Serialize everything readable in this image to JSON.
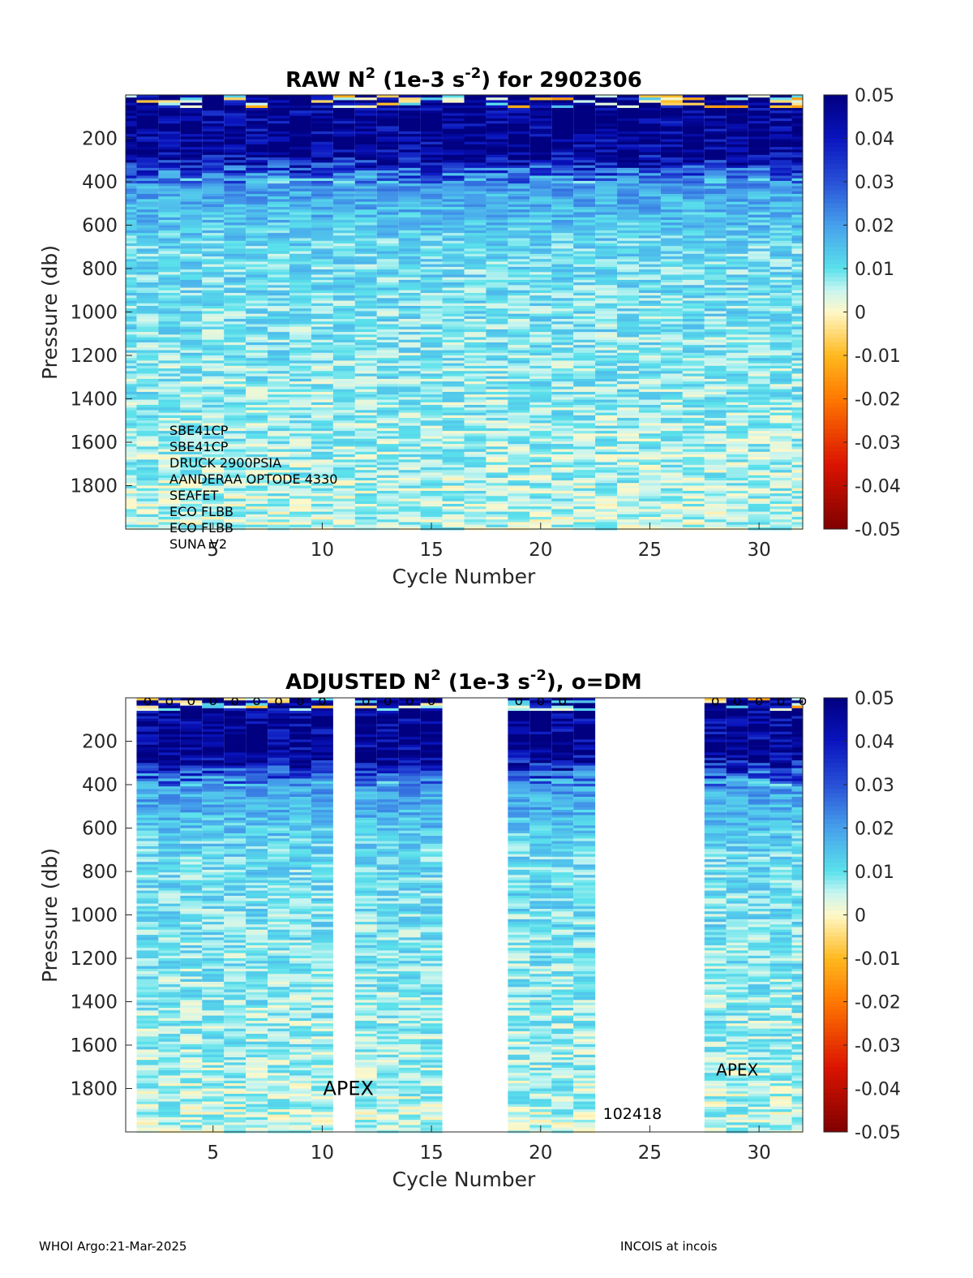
{
  "chart_data": [
    {
      "type": "heatmap",
      "title_main": "RAW N",
      "title_sup": "2",
      "title_unit_pre": " (1e-3 s",
      "title_unit_sup": "-2",
      "title_post": ") for 2902306",
      "xlabel": "Cycle Number",
      "ylabel": "Pressure (db)",
      "xlim": [
        1,
        32
      ],
      "ylim": [
        2000,
        0
      ],
      "xticks": [
        5,
        10,
        15,
        20,
        25,
        30
      ],
      "yticks": [
        200,
        400,
        600,
        800,
        1000,
        1200,
        1400,
        1600,
        1800
      ],
      "cycles_present": [
        1,
        2,
        3,
        4,
        5,
        6,
        7,
        8,
        9,
        10,
        11,
        12,
        13,
        14,
        15,
        16,
        17,
        18,
        19,
        20,
        21,
        22,
        23,
        24,
        25,
        26,
        27,
        28,
        29,
        30,
        31,
        32
      ],
      "colorbar": {
        "min": -0.05,
        "max": 0.05,
        "ticks": [
          "0.05",
          "0.04",
          "0.03",
          "0.02",
          "0.01",
          "0",
          "-0.01",
          "-0.02",
          "-0.03",
          "-0.04",
          "-0.05"
        ]
      },
      "annotations": [
        "SBE41CP",
        "SBE41CP",
        "DRUCK 2900PSIA",
        "AANDERAA OPTODE 4330",
        "SEAFET",
        "ECO FLBB",
        "ECO FLBB",
        "SUNA V2"
      ]
    },
    {
      "type": "heatmap",
      "title_main": "ADJUSTED N",
      "title_sup": "2",
      "title_unit_pre": " (1e-3 s",
      "title_unit_sup": "-2",
      "title_post": "), o=DM",
      "xlabel": "Cycle Number",
      "ylabel": "Pressure (db)",
      "xlim": [
        1,
        32
      ],
      "ylim": [
        2000,
        0
      ],
      "xticks": [
        5,
        10,
        15,
        20,
        25,
        30
      ],
      "yticks": [
        200,
        400,
        600,
        800,
        1000,
        1200,
        1400,
        1600,
        1800
      ],
      "cycles_present": [
        2,
        3,
        4,
        5,
        6,
        7,
        8,
        9,
        10,
        12,
        13,
        14,
        15,
        19,
        20,
        21,
        22,
        28,
        29,
        30,
        31,
        32
      ],
      "dm_markers": [
        2,
        3,
        4,
        5,
        6,
        7,
        8,
        9,
        10,
        12,
        13,
        14,
        15,
        19,
        20,
        21,
        28,
        29,
        30,
        31,
        32
      ],
      "dm_marker_symbol": "o",
      "colorbar": {
        "min": -0.05,
        "max": 0.05,
        "ticks": [
          "0.05",
          "0.04",
          "0.03",
          "0.02",
          "0.01",
          "0",
          "-0.01",
          "-0.02",
          "-0.03",
          "-0.04",
          "-0.05"
        ]
      },
      "annotations": [
        {
          "text": "APEX",
          "x": 11.2,
          "y": 1800
        },
        {
          "text": "102418",
          "x": 24.2,
          "y": 1910
        },
        {
          "text": "APEX",
          "x": 29.0,
          "y": 1710
        }
      ]
    }
  ],
  "footer": {
    "left": "WHOI Argo:21-Mar-2025",
    "right": "INCOIS at incois"
  }
}
